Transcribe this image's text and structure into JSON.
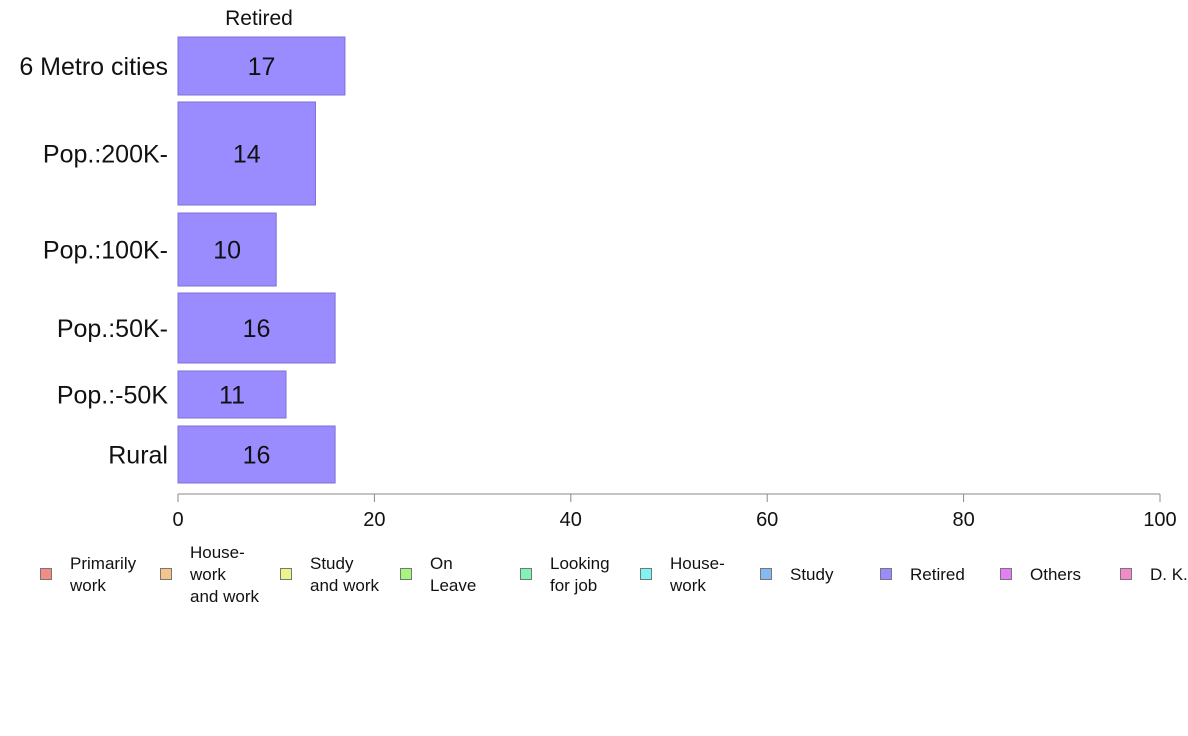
{
  "chart_data": {
    "type": "bar",
    "orientation": "horizontal",
    "title": "Retired",
    "categories": [
      "6 Metro cities",
      "Pop.:200K-",
      "Pop.:100K-",
      "Pop.:50K-",
      "Pop.:-50K",
      "Rural"
    ],
    "values": [
      17,
      14,
      10,
      16,
      11,
      16
    ],
    "bar_color": "#9a8cff",
    "xlim": [
      0,
      100
    ],
    "xticks": [
      0,
      20,
      40,
      60,
      80,
      100
    ],
    "xlabel": "",
    "ylabel": "",
    "grid": false,
    "legend_position": "bottom",
    "legend": [
      {
        "label": "Primarily\nwork",
        "color": "#f28c84"
      },
      {
        "label": "House-\nwork\nand work",
        "color": "#f5c489"
      },
      {
        "label": "Study\nand work",
        "color": "#ebf58a"
      },
      {
        "label": "On\nLeave",
        "color": "#a6f57e"
      },
      {
        "label": "Looking\nfor job",
        "color": "#7ef5b4"
      },
      {
        "label": "House-\nwork",
        "color": "#7ef5f5"
      },
      {
        "label": "Study",
        "color": "#86b8f5"
      },
      {
        "label": "Retired",
        "color": "#9a8cff"
      },
      {
        "label": "Others",
        "color": "#e47ef5"
      },
      {
        "label": "D. K.",
        "color": "#f58ac8"
      }
    ]
  }
}
